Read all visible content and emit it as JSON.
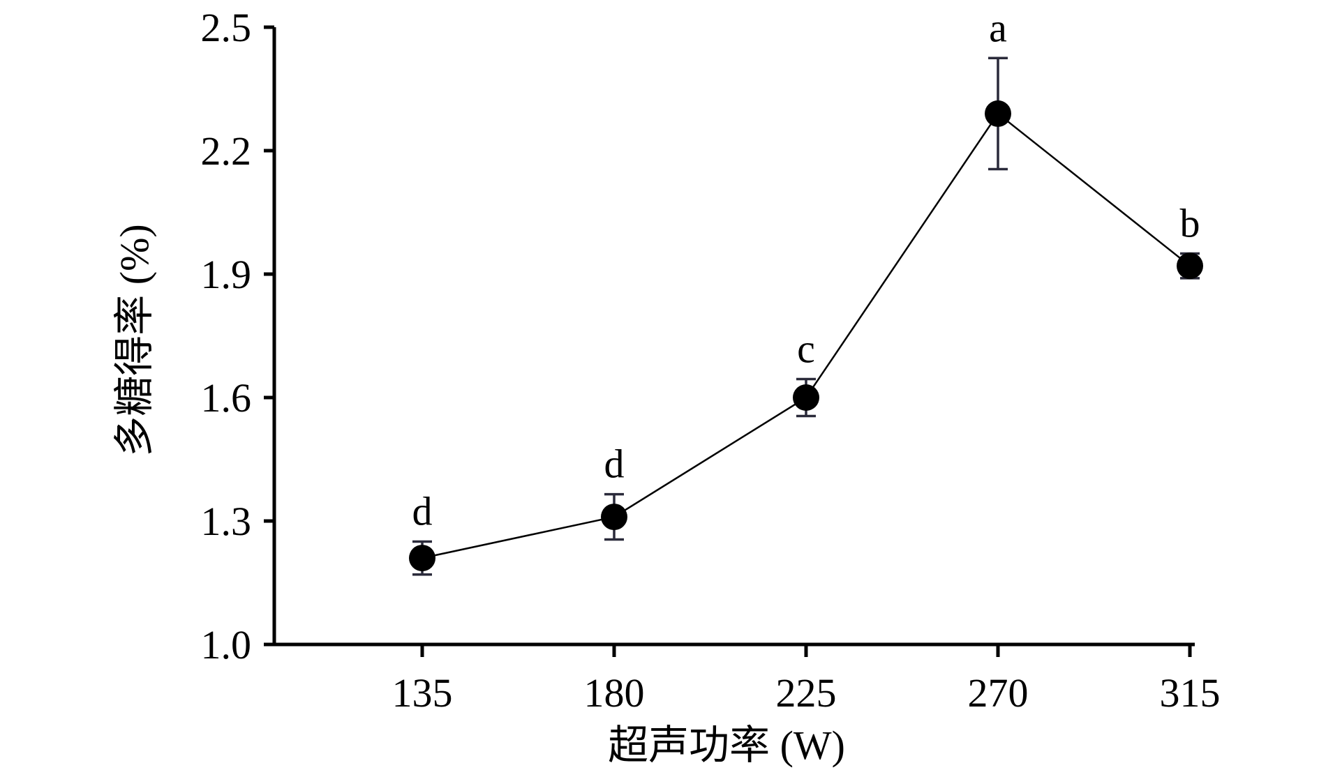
{
  "chart_data": {
    "type": "line",
    "xlabel": "超声功率 (W)",
    "ylabel": "多糖得率 (%)",
    "categories": [
      "135",
      "180",
      "225",
      "270",
      "315"
    ],
    "values": [
      1.21,
      1.31,
      1.6,
      2.29,
      1.92
    ],
    "errors": [
      0.04,
      0.055,
      0.045,
      0.135,
      0.03
    ],
    "significance": [
      "d",
      "d",
      "c",
      "a",
      "b"
    ],
    "ylim": [
      1.0,
      2.5
    ],
    "yticks": [
      "1.0",
      "1.3",
      "1.6",
      "1.9",
      "2.2",
      "2.5"
    ],
    "grid": false,
    "colors": {
      "line": "#000000",
      "marker": "#000000",
      "errorbar": "#2a2a3a"
    }
  }
}
